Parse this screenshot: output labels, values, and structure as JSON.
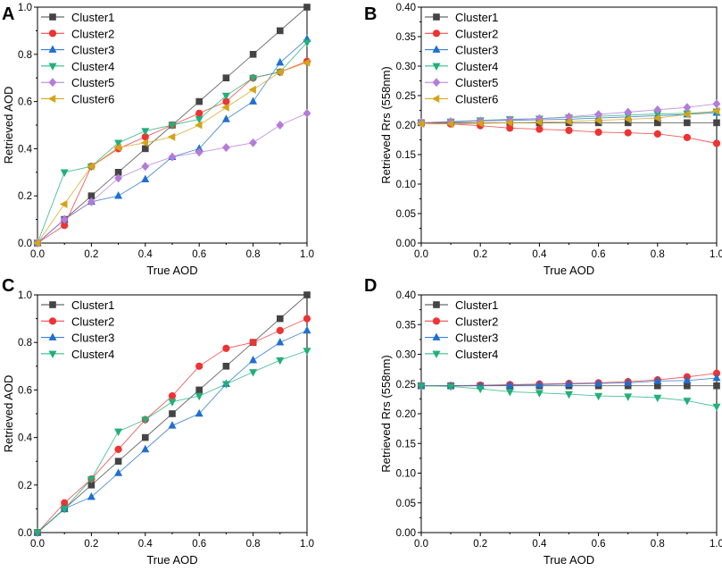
{
  "figure": {
    "colors": {
      "Cluster1": "#444444",
      "Cluster2": "#ee3333",
      "Cluster3": "#1f6fd1",
      "Cluster4": "#22b07a",
      "Cluster5": "#b57bd9",
      "Cluster6": "#d4a418"
    }
  },
  "chart_data": [
    {
      "type": "line",
      "panel_label": "A",
      "xlabel": "True AOD",
      "ylabel": "Retrieved AOD",
      "xlim": [
        0,
        1.0
      ],
      "ylim": [
        0,
        1.0
      ],
      "xticks": [
        "0.0",
        "0.2",
        "0.4",
        "0.6",
        "0.8",
        "1.0"
      ],
      "yticks": [
        "0.0",
        "0.2",
        "0.4",
        "0.6",
        "0.8",
        "1.0"
      ],
      "legend_position": "top-left",
      "x": [
        0,
        0.1,
        0.2,
        0.3,
        0.4,
        0.5,
        0.6,
        0.7,
        0.8,
        0.9,
        1.0
      ],
      "series": [
        {
          "name": "Cluster1",
          "marker": "square",
          "color": "#444444",
          "values": [
            0,
            0.1,
            0.2,
            0.3,
            0.4,
            0.5,
            0.6,
            0.7,
            0.8,
            0.9,
            1.0
          ]
        },
        {
          "name": "Cluster2",
          "marker": "circle",
          "color": "#ee3333",
          "values": [
            0,
            0.075,
            0.325,
            0.4,
            0.45,
            0.5,
            0.55,
            0.6,
            0.7,
            0.725,
            0.77
          ]
        },
        {
          "name": "Cluster3",
          "marker": "triangle-up",
          "color": "#1f6fd1",
          "values": [
            0,
            0.1,
            0.175,
            0.2,
            0.27,
            0.365,
            0.4,
            0.525,
            0.6,
            0.765,
            0.865
          ]
        },
        {
          "name": "Cluster4",
          "marker": "triangle-down",
          "color": "#22b07a",
          "values": [
            0,
            0.3,
            0.325,
            0.425,
            0.475,
            0.5,
            0.525,
            0.625,
            0.7,
            0.725,
            0.85
          ]
        },
        {
          "name": "Cluster5",
          "marker": "diamond",
          "color": "#b57bd9",
          "values": [
            0,
            0.1,
            0.175,
            0.275,
            0.325,
            0.365,
            0.385,
            0.405,
            0.425,
            0.5,
            0.55
          ]
        },
        {
          "name": "Cluster6",
          "marker": "triangle-left",
          "color": "#d4a418",
          "values": [
            0,
            0.165,
            0.325,
            0.405,
            0.425,
            0.45,
            0.5,
            0.575,
            0.65,
            0.725,
            0.765
          ]
        }
      ]
    },
    {
      "type": "line",
      "panel_label": "B",
      "xlabel": "True AOD",
      "ylabel": "Retrieved Rrs (558nm)",
      "xlim": [
        0,
        1.0
      ],
      "ylim": [
        0,
        0.4
      ],
      "xticks": [
        "0.0",
        "0.2",
        "0.4",
        "0.6",
        "0.8",
        "1.0"
      ],
      "yticks": [
        "0.00",
        "0.05",
        "0.10",
        "0.15",
        "0.20",
        "0.25",
        "0.30",
        "0.35",
        "0.40"
      ],
      "legend_position": "top-left",
      "x": [
        0,
        0.1,
        0.2,
        0.3,
        0.4,
        0.5,
        0.6,
        0.7,
        0.8,
        0.9,
        1.0
      ],
      "series": [
        {
          "name": "Cluster1",
          "marker": "square",
          "color": "#444444",
          "values": [
            0.204,
            0.204,
            0.204,
            0.204,
            0.204,
            0.204,
            0.204,
            0.204,
            0.204,
            0.204,
            0.204
          ]
        },
        {
          "name": "Cluster2",
          "marker": "circle",
          "color": "#ee3333",
          "values": [
            0.204,
            0.202,
            0.199,
            0.195,
            0.193,
            0.191,
            0.188,
            0.187,
            0.185,
            0.179,
            0.169
          ]
        },
        {
          "name": "Cluster3",
          "marker": "triangle-up",
          "color": "#1f6fd1",
          "values": [
            0.204,
            0.205,
            0.207,
            0.208,
            0.209,
            0.21,
            0.212,
            0.214,
            0.216,
            0.218,
            0.221
          ]
        },
        {
          "name": "Cluster4",
          "marker": "triangle-down",
          "color": "#22b07a",
          "values": [
            0.204,
            0.206,
            0.208,
            0.21,
            0.211,
            0.213,
            0.215,
            0.217,
            0.219,
            0.22,
            0.223
          ]
        },
        {
          "name": "Cluster5",
          "marker": "diamond",
          "color": "#b57bd9",
          "values": [
            0.204,
            0.206,
            0.207,
            0.209,
            0.211,
            0.214,
            0.218,
            0.222,
            0.226,
            0.23,
            0.236
          ]
        },
        {
          "name": "Cluster6",
          "marker": "triangle-left",
          "color": "#d4a418",
          "values": [
            0.202,
            0.202,
            0.203,
            0.204,
            0.205,
            0.206,
            0.208,
            0.21,
            0.212,
            0.218,
            0.224
          ]
        }
      ]
    },
    {
      "type": "line",
      "panel_label": "C",
      "xlabel": "True AOD",
      "ylabel": "Retrieved AOD",
      "xlim": [
        0,
        1.0
      ],
      "ylim": [
        0,
        1.0
      ],
      "xticks": [
        "0.0",
        "0.2",
        "0.4",
        "0.6",
        "0.8",
        "1.0"
      ],
      "yticks": [
        "0.0",
        "0.2",
        "0.4",
        "0.6",
        "0.8",
        "1.0"
      ],
      "legend_position": "top-left",
      "x": [
        0,
        0.1,
        0.2,
        0.3,
        0.4,
        0.5,
        0.6,
        0.7,
        0.8,
        0.9,
        1.0
      ],
      "series": [
        {
          "name": "Cluster1",
          "marker": "square",
          "color": "#444444",
          "values": [
            0,
            0.1,
            0.2,
            0.3,
            0.4,
            0.5,
            0.6,
            0.7,
            0.8,
            0.9,
            1.0
          ]
        },
        {
          "name": "Cluster2",
          "marker": "circle",
          "color": "#ee3333",
          "values": [
            0,
            0.125,
            0.225,
            0.35,
            0.475,
            0.575,
            0.7,
            0.775,
            0.8,
            0.85,
            0.9
          ]
        },
        {
          "name": "Cluster3",
          "marker": "triangle-up",
          "color": "#1f6fd1",
          "values": [
            0,
            0.1,
            0.15,
            0.25,
            0.35,
            0.45,
            0.5,
            0.625,
            0.725,
            0.8,
            0.85
          ]
        },
        {
          "name": "Cluster4",
          "marker": "triangle-down",
          "color": "#22b07a",
          "values": [
            0,
            0.1,
            0.225,
            0.425,
            0.475,
            0.55,
            0.575,
            0.625,
            0.675,
            0.725,
            0.765
          ]
        }
      ]
    },
    {
      "type": "line",
      "panel_label": "D",
      "xlabel": "True AOD",
      "ylabel": "Retrieved Rrs (558nm)",
      "xlim": [
        0,
        1.0
      ],
      "ylim": [
        0,
        0.4
      ],
      "xticks": [
        "0.0",
        "0.2",
        "0.4",
        "0.6",
        "0.8",
        "1.0"
      ],
      "yticks": [
        "0.00",
        "0.05",
        "0.10",
        "0.15",
        "0.20",
        "0.25",
        "0.30",
        "0.35",
        "0.40"
      ],
      "legend_position": "top-left",
      "x": [
        0,
        0.1,
        0.2,
        0.3,
        0.4,
        0.5,
        0.6,
        0.7,
        0.8,
        0.9,
        1.0
      ],
      "series": [
        {
          "name": "Cluster1",
          "marker": "square",
          "color": "#444444",
          "values": [
            0.247,
            0.247,
            0.247,
            0.247,
            0.247,
            0.247,
            0.247,
            0.247,
            0.247,
            0.247,
            0.247
          ]
        },
        {
          "name": "Cluster2",
          "marker": "circle",
          "color": "#ee3333",
          "values": [
            0.247,
            0.247,
            0.248,
            0.249,
            0.25,
            0.251,
            0.252,
            0.254,
            0.257,
            0.262,
            0.268
          ]
        },
        {
          "name": "Cluster3",
          "marker": "triangle-up",
          "color": "#1f6fd1",
          "values": [
            0.247,
            0.247,
            0.247,
            0.248,
            0.249,
            0.25,
            0.251,
            0.252,
            0.255,
            0.256,
            0.26
          ]
        },
        {
          "name": "Cluster4",
          "marker": "triangle-down",
          "color": "#22b07a",
          "values": [
            0.247,
            0.246,
            0.242,
            0.237,
            0.235,
            0.233,
            0.23,
            0.229,
            0.227,
            0.222,
            0.212
          ]
        }
      ]
    }
  ]
}
